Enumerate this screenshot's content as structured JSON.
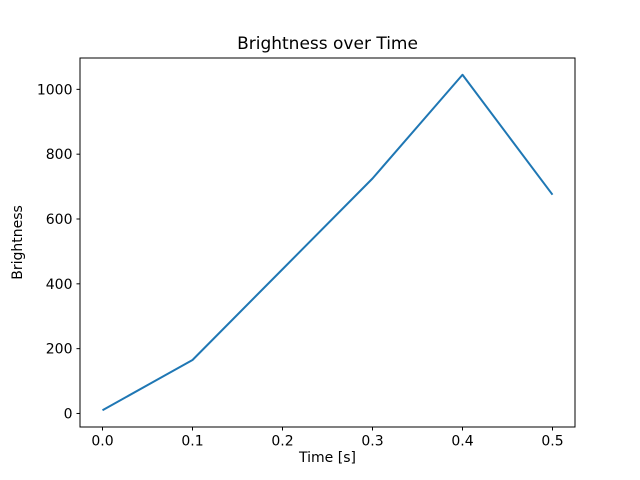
{
  "figure": {
    "background": "#ffffff",
    "text_color": "#000000"
  },
  "chart_data": {
    "type": "line",
    "title": "Brightness over Time",
    "xlabel": "Time [s]",
    "ylabel": "Brightness",
    "x": [
      0.0,
      0.1,
      0.2,
      0.3,
      0.4,
      0.5
    ],
    "y": [
      10,
      165,
      445,
      725,
      1045,
      675
    ],
    "series": [
      {
        "name": "Brightness",
        "x": [
          0.0,
          0.1,
          0.2,
          0.3,
          0.4,
          0.5
        ],
        "values": [
          10,
          165,
          445,
          725,
          1045,
          675
        ]
      }
    ],
    "xticks": [
      0.0,
      0.1,
      0.2,
      0.3,
      0.4,
      0.5
    ],
    "xtick_labels": [
      "0.0",
      "0.1",
      "0.2",
      "0.3",
      "0.4",
      "0.5"
    ],
    "yticks": [
      0,
      200,
      400,
      600,
      800,
      1000
    ],
    "ytick_labels": [
      "0",
      "200",
      "400",
      "600",
      "800",
      "1000"
    ],
    "xlim": [
      -0.025,
      0.525
    ],
    "ylim": [
      -41.75,
      1096.75
    ],
    "grid": false,
    "legend": false,
    "line_color": "#1f77b4",
    "spine_color": "#000000"
  }
}
